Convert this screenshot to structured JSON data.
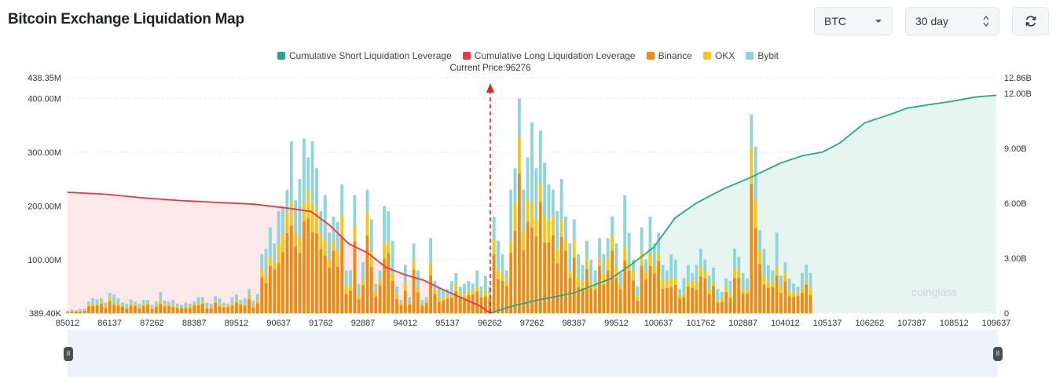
{
  "header": {
    "title": "Bitcoin Exchange Liquidation Map"
  },
  "controls": {
    "coin": {
      "value": "BTC"
    },
    "range": {
      "value": "30 day"
    },
    "refresh_icon": "refresh-icon"
  },
  "watermark": "coinglass",
  "colors": {
    "short": "#26a68a",
    "short_fill": "#e7f5f1",
    "long": "#ee3345",
    "long_fill": "#fde8ea",
    "binance": "#f08a0c",
    "okx": "#f5c518",
    "bybit": "#8ed4d8",
    "current": "#e02424"
  },
  "chart_data": {
    "type": "bar",
    "title": "Bitcoin Exchange Liquidation Map",
    "legend": [
      {
        "name": "Cumulative Short Liquidation Leverage",
        "color": "#26a68a"
      },
      {
        "name": "Cumulative Long Liquidation Leverage",
        "color": "#ee3345"
      },
      {
        "name": "Binance",
        "color": "#f08a0c"
      },
      {
        "name": "OKX",
        "color": "#f5c518"
      },
      {
        "name": "Bybit",
        "color": "#8ed4d8"
      }
    ],
    "current_price": 96276,
    "current_price_label": "Current Price:96276",
    "x_range": [
      85012,
      109762
    ],
    "x_ticks": [
      "85012",
      "86137",
      "87262",
      "88387",
      "89512",
      "90637",
      "91762",
      "92887",
      "94012",
      "95137",
      "96262",
      "97262",
      "98387",
      "99512",
      "100637",
      "101762",
      "102887",
      "104012",
      "105137",
      "106262",
      "107387",
      "108512",
      "109637"
    ],
    "y_left": {
      "min": 389400,
      "max": 438350000,
      "ticks": [
        "389.40K",
        "100.00M",
        "200.00M",
        "300.00M",
        "400.00M",
        "438.35M"
      ],
      "tick_values": [
        389400,
        100000000,
        200000000,
        300000000,
        400000000,
        438350000
      ]
    },
    "y_right": {
      "min": 0,
      "max": 12860000000,
      "ticks": [
        "0",
        "3.00B",
        "6.00B",
        "9.00B",
        "12.00B",
        "12.86B"
      ],
      "tick_values": [
        0,
        3000000000,
        6000000000,
        9000000000,
        12000000000,
        12860000000
      ]
    },
    "bar_series": [
      "Binance",
      "OKX",
      "Bybit"
    ],
    "bars_x_start": 85012,
    "bars_x_step": 112.5,
    "bars_total_M": [
      5,
      7,
      6,
      8,
      9,
      22,
      28,
      26,
      28,
      20,
      38,
      35,
      28,
      20,
      18,
      26,
      22,
      18,
      25,
      25,
      16,
      22,
      40,
      24,
      22,
      25,
      18,
      16,
      20,
      18,
      22,
      30,
      30,
      20,
      18,
      32,
      28,
      20,
      18,
      30,
      35,
      25,
      28,
      45,
      24,
      36,
      110,
      120,
      160,
      130,
      190,
      200,
      230,
      320,
      210,
      250,
      325,
      290,
      320,
      270,
      190,
      220,
      150,
      180,
      170,
      240,
      80,
      80,
      220,
      55,
      95,
      230,
      175,
      55,
      80,
      200,
      190,
      135,
      50,
      25,
      90,
      30,
      130,
      80,
      25,
      30,
      140,
      60,
      48,
      45,
      45,
      60,
      75,
      50,
      55,
      60,
      55,
      80,
      50,
      70,
      50,
      180,
      135,
      110,
      80,
      230,
      270,
      400,
      230,
      290,
      355,
      270,
      340,
      280,
      240,
      230,
      190,
      250,
      180,
      130,
      175,
      110,
      90,
      135,
      100,
      80,
      140,
      110,
      140,
      180,
      130,
      75,
      220,
      150,
      100,
      50,
      160,
      100,
      180,
      130,
      150,
      90,
      80,
      110,
      100,
      45,
      65,
      90,
      75,
      90,
      120,
      100,
      70,
      85,
      45,
      40,
      65,
      60,
      120,
      105,
      75,
      65,
      370,
      310,
      155,
      120,
      90,
      80,
      150,
      70,
      95,
      65,
      55,
      50,
      75,
      90,
      75
    ],
    "bars_binance_share": 0.5,
    "bars_okx_share": 0.15,
    "long_curve_B": [
      [
        85012,
        6.6
      ],
      [
        86000,
        6.5
      ],
      [
        87000,
        6.3
      ],
      [
        88000,
        6.15
      ],
      [
        89000,
        6.05
      ],
      [
        90000,
        5.95
      ],
      [
        91000,
        5.7
      ],
      [
        91500,
        5.55
      ],
      [
        92000,
        4.8
      ],
      [
        92500,
        3.8
      ],
      [
        93000,
        3.3
      ],
      [
        93500,
        2.5
      ],
      [
        94000,
        2.1
      ],
      [
        94500,
        1.8
      ],
      [
        95000,
        1.3
      ],
      [
        95500,
        0.85
      ],
      [
        96000,
        0.4
      ],
      [
        96276,
        0.0
      ]
    ],
    "short_curve_B": [
      [
        96276,
        0.0
      ],
      [
        96800,
        0.35
      ],
      [
        97500,
        0.7
      ],
      [
        98500,
        1.1
      ],
      [
        99500,
        1.9
      ],
      [
        100000,
        2.6
      ],
      [
        100637,
        3.6
      ],
      [
        101200,
        5.2
      ],
      [
        101762,
        6.0
      ],
      [
        102500,
        6.8
      ],
      [
        103200,
        7.4
      ],
      [
        104012,
        8.2
      ],
      [
        104600,
        8.6
      ],
      [
        105137,
        8.8
      ],
      [
        105600,
        9.3
      ],
      [
        106262,
        10.4
      ],
      [
        107000,
        10.9
      ],
      [
        107387,
        11.2
      ],
      [
        108000,
        11.4
      ],
      [
        108512,
        11.55
      ],
      [
        109200,
        11.8
      ],
      [
        109762,
        11.9
      ]
    ]
  }
}
